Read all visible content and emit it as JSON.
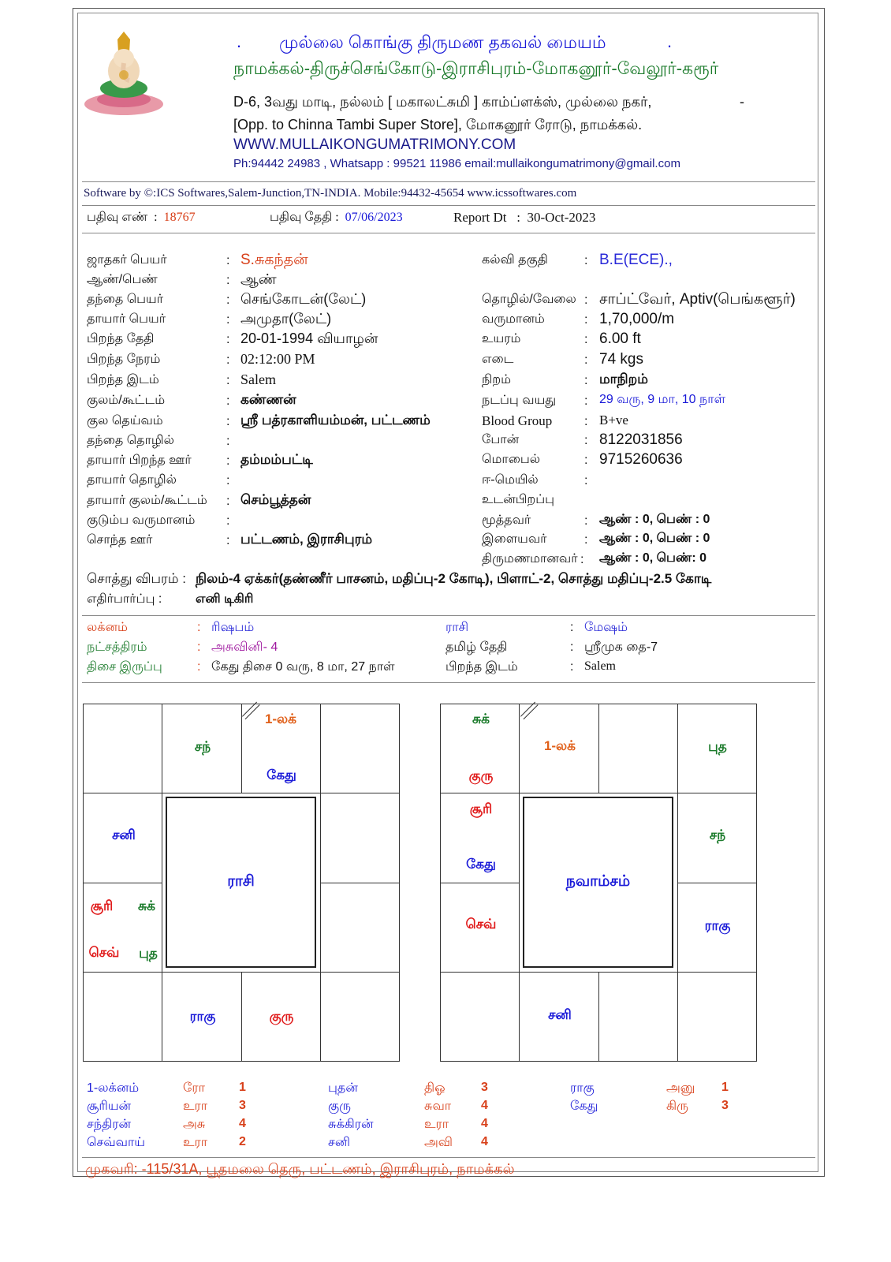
{
  "header": {
    "title": "முல்லை கொங்கு திருமண தகவல் மையம்",
    "title_dot_left": ".",
    "title_dot_right": ".",
    "towns": "நாமக்கல்-திருச்செங்கோடு-இராசிபுரம்-மோகனூர்-வேலூர்-கரூர்",
    "address1": "D-6, 3வது மாடி, நல்லம் [ மகாலட்சுமி ] காம்ப்ளக்ஸ், முல்லை நகர்,",
    "address1_dash": "-",
    "address2": "[Opp. to Chinna Tambi Super Store], மோகனூர் ரோடு, நாமக்கல்.",
    "website": "WWW.MULLAIKONGUMATRIMONY.COM",
    "contact": "Ph:94442 24983 , Whatsapp : 99521 11986 email:mullaikongumatrimony@gmail.com",
    "logo": "ganesha-image"
  },
  "software_line": "Software by ©:ICS Softwares,Salem-Junction,TN-INDIA. Mobile:94432-45654 www.icssoftwares.com",
  "registration": {
    "reg_no_label": "பதிவு எண்",
    "reg_no": "18767",
    "reg_date_label": "பதிவு தேதி",
    "reg_date": "07/06/2023",
    "report_label": "Report Dt",
    "report_date": "30-Oct-2023"
  },
  "left_fields": [
    {
      "label": "ஜாதகர் பெயர்",
      "value": "S.சுகந்தன்",
      "color": "#d8401a"
    },
    {
      "label": "ஆண்/பெண்",
      "value": "ஆண்"
    },
    {
      "label": "தந்தை பெயர்",
      "value": "செங்கோடன்(லேட்)"
    },
    {
      "label": "தாயார் பெயர்",
      "value": "அமுதா(லேட்)"
    },
    {
      "label": "பிறந்த தேதி",
      "value": "20-01-1994 வியாழன்"
    },
    {
      "label": "பிறந்த நேரம்",
      "value": "02:12:00 PM",
      "serif": true
    },
    {
      "label": "பிறந்த இடம்",
      "value": "Salem",
      "serif": true
    },
    {
      "label": "குலம்/கூட்டம்",
      "value": "கண்ணன்",
      "bold": true
    },
    {
      "label": "குல தெய்வம்",
      "value": "ஸ்ரீ பத்ரகாளியம்மன், பட்டணம்",
      "bold": true
    },
    {
      "label": "தந்தை தொழில்",
      "value": ""
    },
    {
      "label": "தாயார் பிறந்த ஊர்",
      "value": "தம்மம்பட்டி",
      "bold": true
    },
    {
      "label": "தாயார் தொழில்",
      "value": ""
    },
    {
      "label": "தாயார் குலம்/கூட்டம்",
      "value": "செம்பூத்தன்",
      "bold": true
    },
    {
      "label": "குடும்ப வருமானம்",
      "value": ""
    },
    {
      "label": "சொந்த ஊர்",
      "value": "பட்டணம், இராசிபுரம்",
      "bold": true
    }
  ],
  "right_fields": [
    {
      "label": "கல்வி தகுதி",
      "value": "B.E(ECE).,",
      "color": "#2a2ad8"
    },
    {
      "label": "தொழில்/வேலை",
      "value": "சாப்ட்வேர், Aptiv(பெங்களூர்)"
    },
    {
      "label": "வருமானம்",
      "value": "1,70,000/m"
    },
    {
      "label": "உயரம்",
      "value": "6.00 ft"
    },
    {
      "label": "எடை",
      "value": "74 kgs"
    },
    {
      "label": "நிறம்",
      "value": "மாநிறம்",
      "bold": true
    },
    {
      "label": "நடப்பு வயது",
      "value": "29 வரு, 9 மா, 10 நாள்"
    },
    {
      "label": "Blood Group",
      "value": "B+ve",
      "serif": true
    },
    {
      "label": "போன்",
      "value": "8122031856"
    },
    {
      "label": "மொபைல்",
      "value": "9715260636"
    },
    {
      "label": "ஈ-மெயில்",
      "value": ""
    },
    {
      "label": "உடன்பிறப்பு",
      "value": null
    },
    {
      "label": "மூத்தவர்",
      "value": "ஆண் : 0, பெண் : 0"
    },
    {
      "label": "இளையவர்",
      "value": "ஆண் : 0, பெண் : 0"
    },
    {
      "label": "திருமணமானவர்",
      "value": "ஆண் : 0, பெண்: 0"
    }
  ],
  "property": {
    "label": "சொத்து விபரம் :",
    "value": "நிலம்-4 ஏக்கர்(தண்ணீர் பாசனம், மதிப்பு-2 கோடி), பிளாட்-2, சொத்து மதிப்பு-2.5 கோடி"
  },
  "expectation": {
    "label": "எதிர்பார்ப்பு :",
    "value": "எனி டிகிரி"
  },
  "astro": [
    {
      "label": "லக்னம்",
      "label_color": "#d8401a",
      "value": "ரிஷபம்",
      "value_color": "#2a2ad8",
      "label2": "ராசி",
      "label2_color": "#2a2ad8",
      "value2": "மேஷம்",
      "value2_color": "#2a2ad8"
    },
    {
      "label": "நட்சத்திரம்",
      "label_color": "#1a7a2a",
      "value": "அசுவினி- 4",
      "value_color": "#a01aa0",
      "label2": "தமிழ் தேதி",
      "label2_color": "#111",
      "value2": "ஸ்ரீமுக தை-7",
      "value2_color": "#111"
    },
    {
      "label": "திசை இருப்பு",
      "label_color": "#1a7a2a",
      "value": "கேது திசை 0 வரு, 8 மா, 27 நாள்",
      "value_color": "#111",
      "label2": "பிறந்த இடம்",
      "label2_color": "#111",
      "value2": "Salem",
      "value2_color": "#111"
    }
  ],
  "charts": [
    {
      "title": "ராசி",
      "items": [
        {
          "text": "சந்",
          "color": "#1a7a2a"
        },
        {
          "text": "1-லக்",
          "color": "#e0601a"
        },
        {
          "text": "கேது",
          "color": "#1a1ad8"
        },
        {
          "text": "சனி",
          "color": "#1a1ad8"
        },
        {
          "text": "சூரி",
          "color": "#e01a1a"
        },
        {
          "text": "சுக்",
          "color": "#1a7a2a"
        },
        {
          "text": "செவ்",
          "color": "#e01a1a"
        },
        {
          "text": "புத",
          "color": "#1a7a2a"
        },
        {
          "text": "ராகு",
          "color": "#1a1ad8"
        },
        {
          "text": "குரு",
          "color": "#e01a1a"
        }
      ]
    },
    {
      "title": "நவாம்சம்",
      "items": [
        {
          "text": "சுக்",
          "color": "#1a7a2a"
        },
        {
          "text": "குரு",
          "color": "#e01a1a"
        },
        {
          "text": "1-லக்",
          "color": "#e0601a"
        },
        {
          "text": "புத",
          "color": "#1a7a2a"
        },
        {
          "text": "சூரி",
          "color": "#e01a1a"
        },
        {
          "text": "கேது",
          "color": "#1a1ad8"
        },
        {
          "text": "சந்",
          "color": "#1a7a2a"
        },
        {
          "text": "செவ்",
          "color": "#e01a1a"
        },
        {
          "text": "ராகு",
          "color": "#1a1ad8"
        },
        {
          "text": "சனி",
          "color": "#1a1ad8"
        }
      ]
    }
  ],
  "planet_stars": [
    [
      {
        "planet": "1-லக்னம்",
        "star": "ரோ",
        "pada": "1"
      },
      {
        "planet": "புதன்",
        "star": "திஓ",
        "pada": "3"
      },
      {
        "planet": "ராகு",
        "star": "அனு",
        "pada": "1"
      }
    ],
    [
      {
        "planet": "சூரியன்",
        "star": "உரா",
        "pada": "3"
      },
      {
        "planet": "குரு",
        "star": "சுவா",
        "pada": "4"
      },
      {
        "planet": "கேது",
        "star": "கிரு",
        "pada": "3"
      }
    ],
    [
      {
        "planet": "சந்திரன்",
        "star": "அசு",
        "pada": "4"
      },
      {
        "planet": "சுக்கிரன்",
        "star": "உரா",
        "pada": "4"
      }
    ],
    [
      {
        "planet": "செவ்வாய்",
        "star": "உரா",
        "pada": "2"
      },
      {
        "planet": "சனி",
        "star": "அவி",
        "pada": "4"
      }
    ]
  ],
  "footer": {
    "address": "முகவரி: -115/31A, பூதமலை தெரு, பட்டணம், இராசிபுரம், நாமக்கல்"
  },
  "colors": {
    "blue": "#1a1ad8",
    "green": "#1a7a2a",
    "red": "#d8401a"
  }
}
